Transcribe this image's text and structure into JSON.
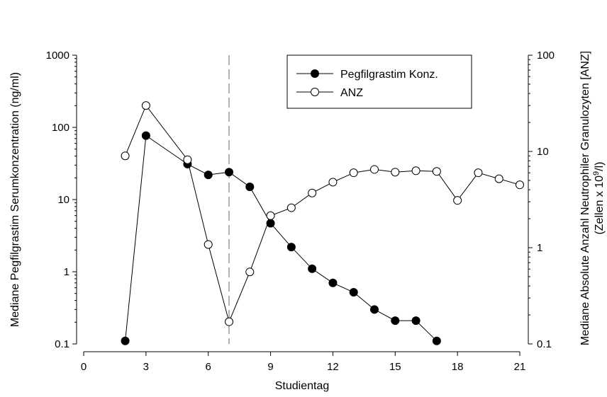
{
  "chart_data": {
    "type": "line",
    "xlabel": "Studientag",
    "ylabel_left": "Mediane Pegfilgrastim Serumkonzentration (ng/ml)",
    "ylabel_right": "Mediane Absolute Anzahl Neutrophiler Granulozyten [ANZ]",
    "ylabel_right_unit_prefix": "(Zellen x 10",
    "ylabel_right_unit_exp": "9",
    "ylabel_right_unit_suffix": "/l)",
    "x_range": [
      0,
      21
    ],
    "x_ticks": [
      0,
      3,
      6,
      9,
      12,
      15,
      18,
      21
    ],
    "x_tick_labels": [
      "0",
      "3",
      "6",
      "9",
      "12",
      "15",
      "18",
      "21"
    ],
    "y_left_scale": "log",
    "y_left_range": [
      0.1,
      1000
    ],
    "y_left_ticks": [
      0.1,
      1,
      10,
      100,
      1000
    ],
    "y_left_tick_labels": [
      "0.1",
      "1",
      "10",
      "100",
      "1000"
    ],
    "y_right_scale": "log",
    "y_right_range": [
      0.1,
      100
    ],
    "y_right_ticks": [
      0.1,
      1,
      10,
      100
    ],
    "y_right_tick_labels": [
      "0.1",
      "1",
      "10",
      "100"
    ],
    "reference_line_x": 7,
    "legend_position": "top-center",
    "grid": false,
    "series": [
      {
        "name": "Pegfilgrastim Konz.",
        "axis": "left",
        "marker": "filled-circle",
        "x": [
          2,
          3,
          5,
          6,
          7,
          8,
          9,
          10,
          11,
          12,
          13,
          14,
          15,
          16,
          17
        ],
        "y": [
          0.11,
          77,
          31,
          22,
          24,
          15,
          4.7,
          2.2,
          1.1,
          0.7,
          0.52,
          0.3,
          0.21,
          0.21,
          0.11
        ]
      },
      {
        "name": "ANZ",
        "axis": "right",
        "marker": "open-circle",
        "x": [
          2,
          3,
          5,
          6,
          7,
          8,
          9,
          10,
          11,
          12,
          13,
          14,
          15,
          16,
          17,
          18,
          19,
          20,
          21
        ],
        "y": [
          9,
          30,
          8.2,
          1.08,
          0.17,
          0.56,
          2.15,
          2.6,
          3.7,
          4.8,
          6,
          6.5,
          6.1,
          6.3,
          6.2,
          3.1,
          6,
          5.2,
          4.5
        ]
      }
    ]
  }
}
